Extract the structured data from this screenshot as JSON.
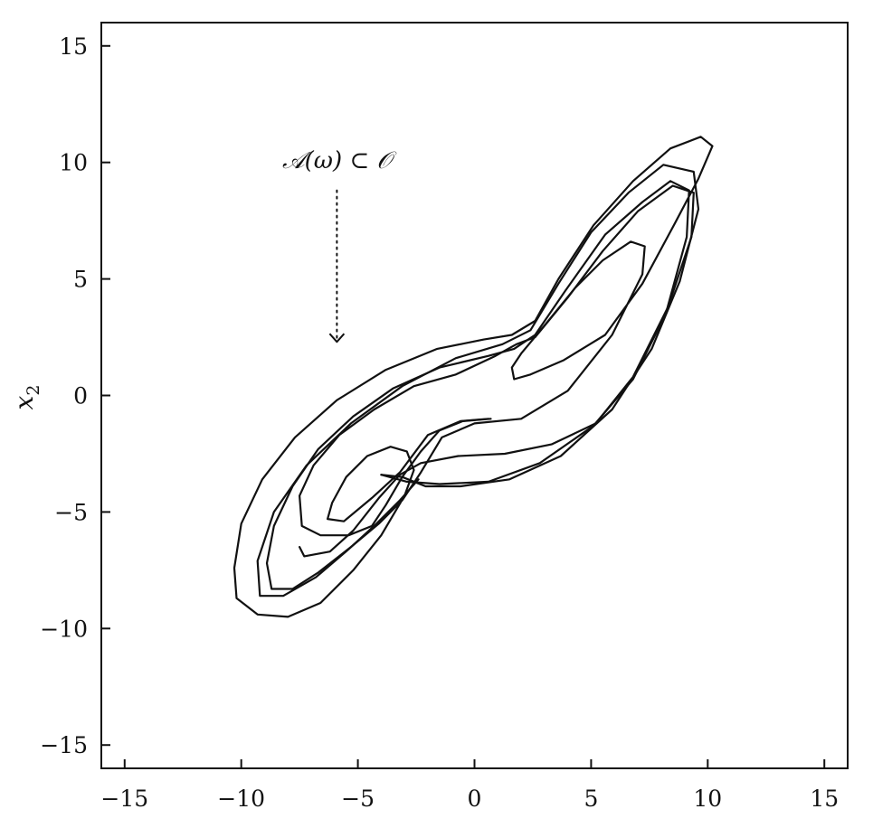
{
  "chart_data": {
    "type": "line",
    "title": "",
    "xlabel": "",
    "ylabel": "x",
    "ylabel_subscript": "2",
    "xlim": [
      -16,
      16
    ],
    "ylim": [
      -16,
      16
    ],
    "x_ticks": [
      -15,
      -10,
      -5,
      0,
      5,
      10,
      15
    ],
    "y_ticks": [
      -15,
      -10,
      -5,
      0,
      5,
      10,
      15
    ],
    "x_tick_labels": [
      "−15",
      "−10",
      "−5",
      "0",
      "5",
      "10",
      "15"
    ],
    "y_tick_labels": [
      "−15",
      "−10",
      "−5",
      "0",
      "5",
      "10",
      "15"
    ],
    "grid": false,
    "annotation": {
      "text": "𝒜(ω) ⊂ 𝒪",
      "x": -5.9,
      "y": 10.1,
      "arrow_from": [
        -5.9,
        8.8
      ],
      "arrow_to": [
        -5.9,
        2.3
      ],
      "arrow_style": "dotted"
    },
    "series": [
      {
        "values": [
          [
            0.7,
            -1.0
          ],
          [
            -0.5,
            -1.1
          ],
          [
            -1.5,
            -1.5
          ],
          [
            -2.3,
            -2.4
          ],
          [
            -3.1,
            -3.5
          ],
          [
            -3.8,
            -4.7
          ],
          [
            -4.4,
            -5.6
          ],
          [
            -5.4,
            -6.0
          ],
          [
            -6.6,
            -6.0
          ],
          [
            -7.4,
            -5.6
          ],
          [
            -7.5,
            -4.3
          ],
          [
            -6.9,
            -3.0
          ],
          [
            -5.8,
            -1.7
          ],
          [
            -4.3,
            -0.6
          ],
          [
            -2.6,
            0.4
          ],
          [
            -0.8,
            0.9
          ],
          [
            0.9,
            1.7
          ],
          [
            1.8,
            2.2
          ],
          [
            2.6,
            2.5
          ],
          [
            4.0,
            4.2
          ],
          [
            5.5,
            6.2
          ],
          [
            7.0,
            7.9
          ],
          [
            8.5,
            9.0
          ],
          [
            9.4,
            8.7
          ],
          [
            9.3,
            6.8
          ],
          [
            8.3,
            3.8
          ],
          [
            6.8,
            0.8
          ],
          [
            5.2,
            -1.2
          ],
          [
            3.3,
            -2.1
          ],
          [
            1.3,
            -2.5
          ],
          [
            -0.7,
            -2.6
          ],
          [
            -2.3,
            -2.9
          ],
          [
            -3.2,
            -3.4
          ],
          [
            -4.1,
            -4.4
          ],
          [
            -5.2,
            -5.8
          ],
          [
            -6.2,
            -6.7
          ],
          [
            -7.3,
            -6.9
          ],
          [
            -7.5,
            -6.5
          ]
        ]
      },
      {
        "values": [
          [
            -4.0,
            -3.4
          ],
          [
            -2.9,
            -3.7
          ],
          [
            -1.5,
            -3.8
          ],
          [
            0.6,
            -3.7
          ],
          [
            2.8,
            -2.9
          ],
          [
            5.1,
            -1.3
          ],
          [
            6.8,
            0.7
          ],
          [
            8.2,
            3.5
          ],
          [
            9.1,
            6.8
          ],
          [
            9.2,
            8.8
          ],
          [
            8.4,
            9.2
          ],
          [
            7.2,
            8.3
          ],
          [
            5.6,
            6.9
          ],
          [
            3.9,
            4.5
          ],
          [
            2.6,
            2.6
          ],
          [
            1.7,
            2.0
          ],
          [
            0.6,
            1.7
          ],
          [
            -1.5,
            1.2
          ],
          [
            -3.5,
            0.3
          ],
          [
            -5.2,
            -0.9
          ],
          [
            -6.7,
            -2.3
          ],
          [
            -7.8,
            -3.9
          ],
          [
            -8.6,
            -5.6
          ],
          [
            -8.9,
            -7.2
          ],
          [
            -8.7,
            -8.3
          ],
          [
            -7.8,
            -8.3
          ],
          [
            -6.7,
            -7.6
          ],
          [
            -5.3,
            -6.5
          ],
          [
            -4.1,
            -5.5
          ],
          [
            -3.1,
            -4.5
          ],
          [
            -2.3,
            -3.3
          ],
          [
            -1.4,
            -1.8
          ],
          [
            0.0,
            -1.2
          ],
          [
            2.0,
            -1.0
          ],
          [
            4.0,
            0.2
          ],
          [
            5.9,
            2.6
          ],
          [
            7.2,
            5.2
          ],
          [
            7.3,
            6.4
          ],
          [
            6.7,
            6.6
          ],
          [
            5.5,
            5.8
          ],
          [
            4.3,
            4.6
          ],
          [
            3.0,
            3.0
          ],
          [
            2.0,
            1.8
          ],
          [
            1.6,
            1.2
          ],
          [
            1.7,
            0.7
          ],
          [
            2.4,
            0.9
          ],
          [
            3.8,
            1.5
          ],
          [
            5.6,
            2.6
          ],
          [
            7.2,
            4.8
          ],
          [
            8.6,
            7.4
          ],
          [
            9.6,
            9.3
          ],
          [
            10.2,
            10.7
          ],
          [
            9.7,
            11.1
          ],
          [
            8.4,
            10.6
          ],
          [
            6.8,
            9.2
          ],
          [
            5.1,
            7.3
          ],
          [
            3.6,
            5.0
          ],
          [
            2.6,
            3.2
          ],
          [
            1.6,
            2.6
          ],
          [
            0.4,
            2.4
          ],
          [
            -1.6,
            2.0
          ],
          [
            -3.8,
            1.1
          ],
          [
            -5.9,
            -0.2
          ],
          [
            -7.7,
            -1.8
          ],
          [
            -9.1,
            -3.6
          ],
          [
            -10.0,
            -5.5
          ],
          [
            -10.3,
            -7.4
          ],
          [
            -10.2,
            -8.7
          ],
          [
            -9.3,
            -9.4
          ],
          [
            -8.0,
            -9.5
          ],
          [
            -6.6,
            -8.9
          ],
          [
            -5.2,
            -7.5
          ],
          [
            -4.0,
            -6.0
          ],
          [
            -3.0,
            -4.3
          ],
          [
            -2.6,
            -3.2
          ],
          [
            -2.9,
            -2.4
          ],
          [
            -3.6,
            -2.2
          ],
          [
            -4.6,
            -2.6
          ],
          [
            -5.5,
            -3.5
          ],
          [
            -6.1,
            -4.6
          ],
          [
            -6.3,
            -5.3
          ],
          [
            -5.6,
            -5.4
          ],
          [
            -4.4,
            -4.4
          ],
          [
            -3.2,
            -3.3
          ],
          [
            -2.0,
            -1.7
          ],
          [
            -0.6,
            -1.1
          ],
          [
            0.6,
            -1.0
          ]
        ]
      },
      {
        "values": [
          [
            -4.0,
            -3.4
          ],
          [
            -3.1,
            -3.5
          ],
          [
            -2.1,
            -3.9
          ],
          [
            -0.6,
            -3.9
          ],
          [
            1.5,
            -3.6
          ],
          [
            3.7,
            -2.6
          ],
          [
            5.9,
            -0.6
          ],
          [
            7.6,
            2.0
          ],
          [
            8.8,
            4.9
          ],
          [
            9.6,
            8.0
          ],
          [
            9.4,
            9.6
          ],
          [
            8.1,
            9.9
          ],
          [
            6.6,
            8.7
          ],
          [
            5.0,
            7.0
          ],
          [
            3.6,
            4.8
          ],
          [
            2.4,
            2.8
          ],
          [
            1.2,
            2.2
          ],
          [
            -0.8,
            1.6
          ],
          [
            -3.1,
            0.4
          ],
          [
            -5.3,
            -1.2
          ],
          [
            -7.2,
            -3.0
          ],
          [
            -8.6,
            -5.0
          ],
          [
            -9.3,
            -7.1
          ],
          [
            -9.2,
            -8.6
          ],
          [
            -8.2,
            -8.6
          ],
          [
            -6.8,
            -7.8
          ],
          [
            -5.4,
            -6.6
          ],
          [
            -4.2,
            -5.5
          ],
          [
            -3.2,
            -4.5
          ],
          [
            -2.4,
            -3.6
          ]
        ]
      }
    ]
  }
}
